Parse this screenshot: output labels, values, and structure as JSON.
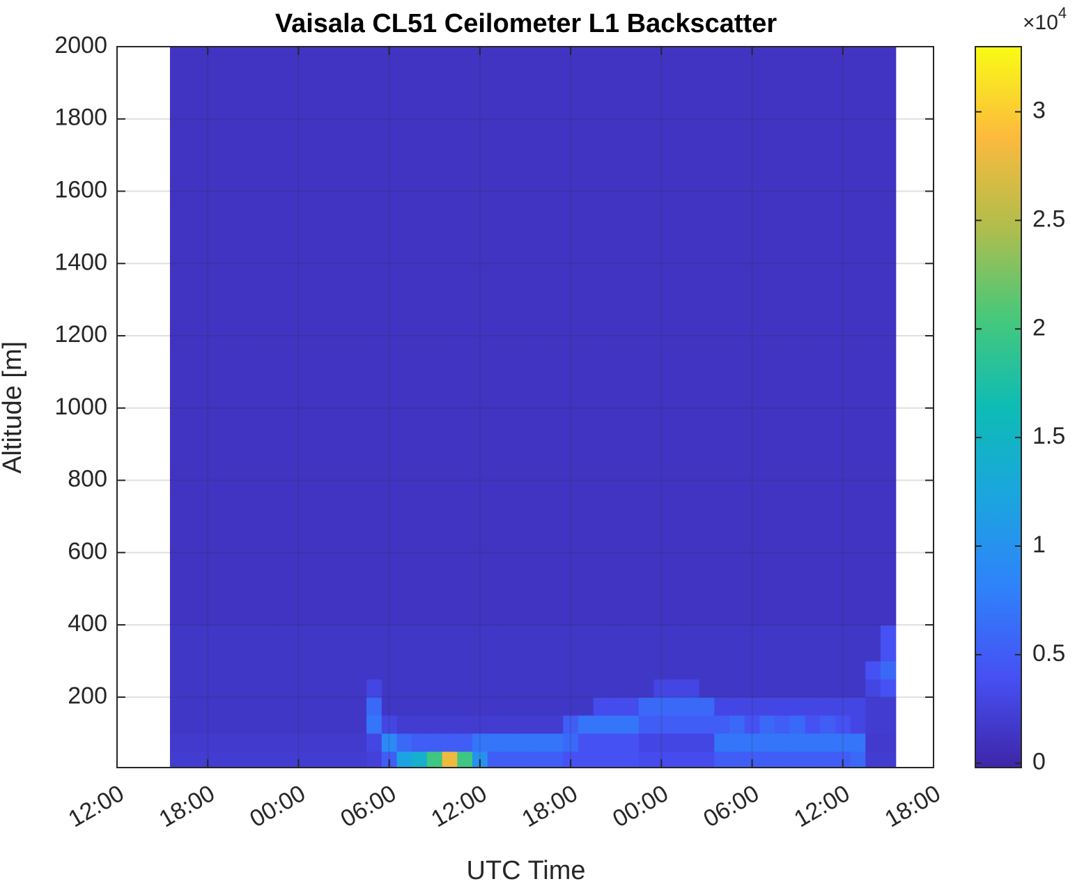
{
  "chart_data": {
    "type": "heatmap",
    "title": "Vaisala CL51 Ceilometer L1 Backscatter",
    "xlabel": "UTC Time",
    "ylabel": "Altitude [m]",
    "xlim": [
      0,
      54
    ],
    "xticks": [
      {
        "value": 0,
        "label": "12:00"
      },
      {
        "value": 6,
        "label": "18:00"
      },
      {
        "value": 12,
        "label": "00:00"
      },
      {
        "value": 18,
        "label": "06:00"
      },
      {
        "value": 24,
        "label": "12:00"
      },
      {
        "value": 30,
        "label": "18:00"
      },
      {
        "value": 36,
        "label": "00:00"
      },
      {
        "value": 42,
        "label": "06:00"
      },
      {
        "value": 48,
        "label": "12:00"
      },
      {
        "value": 54,
        "label": "18:00"
      }
    ],
    "ylim": [
      5,
      2000
    ],
    "yticks": [
      200,
      400,
      600,
      800,
      1000,
      1200,
      1400,
      1600,
      1800,
      2000
    ],
    "grid": true,
    "x_edges": [
      3.5,
      4.5,
      5.5,
      6.5,
      7.5,
      8.5,
      9.5,
      10.5,
      11.5,
      12.5,
      13.5,
      14.5,
      15.5,
      16.5,
      17.5,
      18.5,
      19.5,
      20.5,
      21.5,
      22.5,
      23.5,
      24.5,
      25.5,
      26.5,
      27.5,
      28.5,
      29.5,
      30.5,
      31.5,
      32.5,
      33.5,
      34.5,
      35.5,
      36.5,
      37.5,
      38.5,
      39.5,
      40.5,
      41.5,
      42.5,
      43.5,
      44.5,
      45.5,
      46.5,
      47.5,
      48.5,
      49.5,
      50.5,
      51.5
    ],
    "y_edges": [
      5,
      50,
      100,
      150,
      200,
      250,
      300,
      400,
      2000
    ],
    "z": [
      [
        0.2,
        0.2,
        0.2,
        0.2,
        0.2,
        0.2,
        0.2,
        0.2,
        0.2,
        0.2,
        0.2,
        0.2,
        0.2,
        0.25,
        0.5,
        1.2,
        1.4,
        2.0,
        2.8,
        2.0,
        1.0,
        0.5,
        0.5,
        0.5,
        0.5,
        0.5,
        0.4,
        0.4,
        0.4,
        0.4,
        0.4,
        0.35,
        0.35,
        0.35,
        0.35,
        0.35,
        0.5,
        0.5,
        0.5,
        0.5,
        0.5,
        0.5,
        0.5,
        0.5,
        0.5,
        0.6,
        0.2,
        0.2
      ],
      [
        0.18,
        0.18,
        0.18,
        0.18,
        0.18,
        0.18,
        0.18,
        0.18,
        0.18,
        0.18,
        0.18,
        0.18,
        0.18,
        0.3,
        0.9,
        0.6,
        0.5,
        0.5,
        0.5,
        0.5,
        0.7,
        0.7,
        0.7,
        0.7,
        0.7,
        0.7,
        0.6,
        0.4,
        0.4,
        0.4,
        0.4,
        0.3,
        0.3,
        0.3,
        0.3,
        0.3,
        0.7,
        0.7,
        0.7,
        0.7,
        0.7,
        0.7,
        0.7,
        0.7,
        0.7,
        0.7,
        0.18,
        0.18
      ],
      [
        0.15,
        0.15,
        0.15,
        0.15,
        0.15,
        0.15,
        0.15,
        0.15,
        0.15,
        0.15,
        0.15,
        0.15,
        0.15,
        0.7,
        0.3,
        0.2,
        0.2,
        0.2,
        0.2,
        0.2,
        0.2,
        0.2,
        0.2,
        0.2,
        0.2,
        0.2,
        0.5,
        0.7,
        0.7,
        0.7,
        0.7,
        0.5,
        0.5,
        0.5,
        0.5,
        0.5,
        0.5,
        0.6,
        0.4,
        0.6,
        0.5,
        0.6,
        0.4,
        0.5,
        0.4,
        0.3,
        0.2,
        0.2
      ],
      [
        0.15,
        0.15,
        0.15,
        0.15,
        0.15,
        0.15,
        0.15,
        0.15,
        0.15,
        0.15,
        0.15,
        0.15,
        0.15,
        0.6,
        0.15,
        0.15,
        0.15,
        0.15,
        0.15,
        0.15,
        0.15,
        0.15,
        0.15,
        0.15,
        0.15,
        0.15,
        0.15,
        0.15,
        0.35,
        0.35,
        0.35,
        0.6,
        0.6,
        0.6,
        0.6,
        0.6,
        0.3,
        0.3,
        0.3,
        0.3,
        0.3,
        0.3,
        0.3,
        0.3,
        0.3,
        0.3,
        0.2,
        0.2
      ],
      [
        0.15,
        0.15,
        0.15,
        0.15,
        0.15,
        0.15,
        0.15,
        0.15,
        0.15,
        0.15,
        0.15,
        0.15,
        0.15,
        0.3,
        0.15,
        0.15,
        0.15,
        0.15,
        0.15,
        0.15,
        0.15,
        0.15,
        0.15,
        0.15,
        0.15,
        0.15,
        0.15,
        0.15,
        0.15,
        0.15,
        0.15,
        0.15,
        0.3,
        0.3,
        0.3,
        0.15,
        0.15,
        0.15,
        0.15,
        0.15,
        0.15,
        0.15,
        0.15,
        0.15,
        0.15,
        0.15,
        0.3,
        0.4
      ],
      [
        0.15,
        0.15,
        0.15,
        0.15,
        0.15,
        0.15,
        0.15,
        0.15,
        0.15,
        0.15,
        0.15,
        0.15,
        0.15,
        0.15,
        0.15,
        0.15,
        0.15,
        0.15,
        0.15,
        0.15,
        0.15,
        0.15,
        0.15,
        0.15,
        0.15,
        0.15,
        0.15,
        0.15,
        0.15,
        0.15,
        0.15,
        0.15,
        0.15,
        0.15,
        0.15,
        0.15,
        0.15,
        0.15,
        0.15,
        0.15,
        0.15,
        0.15,
        0.15,
        0.15,
        0.15,
        0.15,
        0.4,
        0.6
      ],
      [
        0.15,
        0.15,
        0.15,
        0.15,
        0.15,
        0.15,
        0.15,
        0.15,
        0.15,
        0.15,
        0.15,
        0.15,
        0.15,
        0.15,
        0.15,
        0.15,
        0.15,
        0.15,
        0.15,
        0.15,
        0.15,
        0.15,
        0.15,
        0.15,
        0.15,
        0.15,
        0.15,
        0.15,
        0.15,
        0.15,
        0.15,
        0.15,
        0.15,
        0.15,
        0.15,
        0.15,
        0.15,
        0.15,
        0.15,
        0.15,
        0.15,
        0.15,
        0.15,
        0.15,
        0.15,
        0.15,
        0.15,
        0.4
      ],
      [
        0.12,
        0.12,
        0.12,
        0.12,
        0.12,
        0.12,
        0.12,
        0.12,
        0.12,
        0.12,
        0.12,
        0.12,
        0.12,
        0.12,
        0.12,
        0.12,
        0.12,
        0.12,
        0.12,
        0.12,
        0.12,
        0.12,
        0.12,
        0.12,
        0.12,
        0.12,
        0.12,
        0.12,
        0.12,
        0.12,
        0.12,
        0.12,
        0.12,
        0.12,
        0.12,
        0.12,
        0.12,
        0.12,
        0.12,
        0.12,
        0.12,
        0.12,
        0.12,
        0.12,
        0.12,
        0.12,
        0.12,
        0.12
      ]
    ],
    "clim": [
      -0.02,
      3.3
    ],
    "cticks": [
      0,
      0.5,
      1,
      1.5,
      2,
      2.5,
      3
    ],
    "colorbar_multiplier": {
      "base": "×10",
      "exponent": "4"
    },
    "colormap": [
      "#3e26a8",
      "#4650f4",
      "#2f82fb",
      "#1ba5df",
      "#0ebcb5",
      "#47c87a",
      "#b1bd4c",
      "#fcba3d",
      "#f9fb15"
    ]
  }
}
